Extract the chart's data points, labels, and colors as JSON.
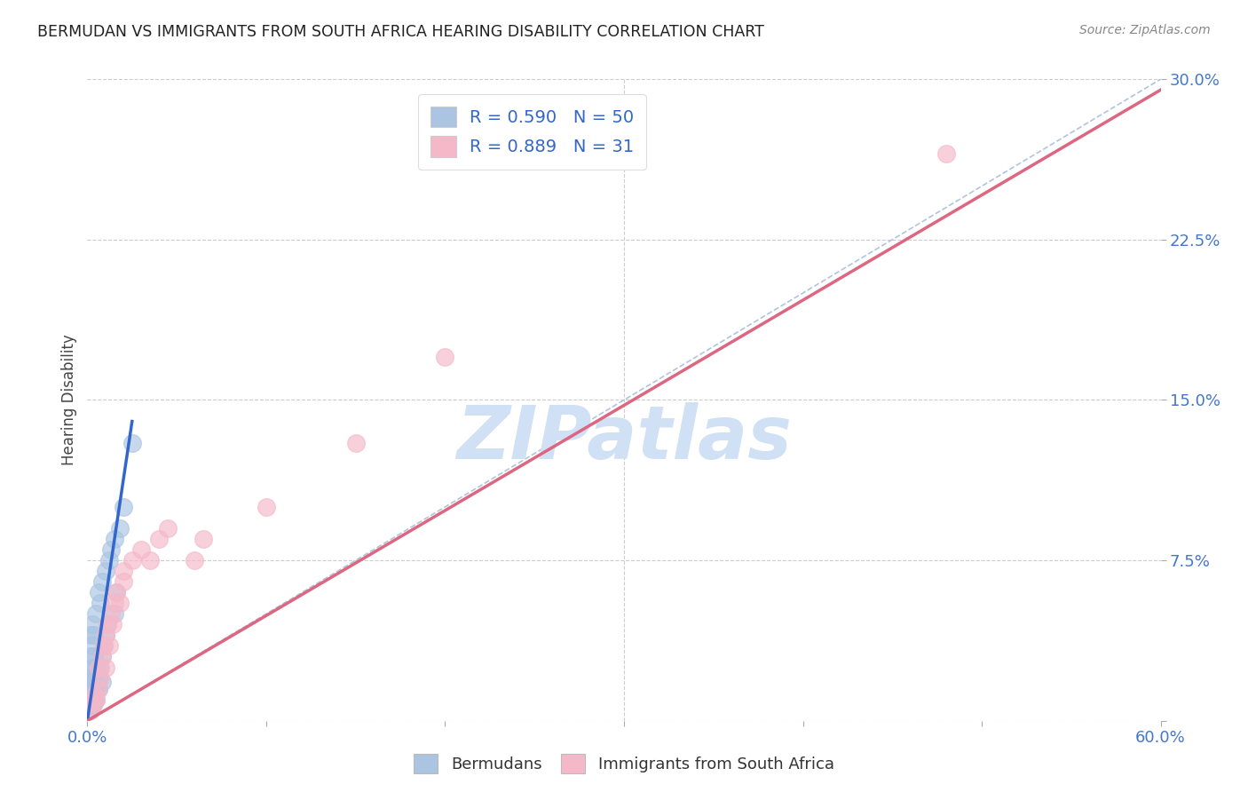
{
  "title": "BERMUDAN VS IMMIGRANTS FROM SOUTH AFRICA HEARING DISABILITY CORRELATION CHART",
  "source": "Source: ZipAtlas.com",
  "ylabel": "Hearing Disability",
  "xlim": [
    0.0,
    0.6
  ],
  "ylim": [
    0.0,
    0.3
  ],
  "xticks": [
    0.0,
    0.1,
    0.2,
    0.3,
    0.4,
    0.5,
    0.6
  ],
  "yticks": [
    0.0,
    0.075,
    0.15,
    0.225,
    0.3
  ],
  "ytick_labels": [
    "",
    "7.5%",
    "15.0%",
    "22.5%",
    "30.0%"
  ],
  "xtick_labels": [
    "0.0%",
    "",
    "",
    "",
    "",
    "",
    "60.0%"
  ],
  "blue_R": 0.59,
  "blue_N": 50,
  "pink_R": 0.889,
  "pink_N": 31,
  "blue_color": "#aac4e2",
  "pink_color": "#f5b8c8",
  "blue_line_color": "#3366cc",
  "pink_line_color": "#dd6680",
  "ref_line_color": "#b0c4de",
  "watermark_color": "#d0e0f5",
  "grid_color": "#cccccc",
  "title_color": "#222222",
  "axis_tick_color": "#4477cc",
  "blue_scatter_x": [
    0.001,
    0.001,
    0.001,
    0.001,
    0.002,
    0.002,
    0.002,
    0.002,
    0.002,
    0.002,
    0.003,
    0.003,
    0.003,
    0.003,
    0.003,
    0.003,
    0.004,
    0.004,
    0.004,
    0.004,
    0.005,
    0.005,
    0.005,
    0.006,
    0.006,
    0.007,
    0.007,
    0.008,
    0.008,
    0.009,
    0.01,
    0.01,
    0.011,
    0.012,
    0.013,
    0.015,
    0.015,
    0.016,
    0.018,
    0.02,
    0.001,
    0.001,
    0.002,
    0.002,
    0.003,
    0.004,
    0.005,
    0.006,
    0.008,
    0.025
  ],
  "blue_scatter_y": [
    0.01,
    0.012,
    0.015,
    0.02,
    0.008,
    0.01,
    0.012,
    0.02,
    0.03,
    0.04,
    0.008,
    0.01,
    0.015,
    0.025,
    0.035,
    0.045,
    0.01,
    0.02,
    0.03,
    0.04,
    0.015,
    0.025,
    0.05,
    0.02,
    0.06,
    0.025,
    0.055,
    0.03,
    0.065,
    0.035,
    0.04,
    0.07,
    0.045,
    0.075,
    0.08,
    0.05,
    0.085,
    0.06,
    0.09,
    0.1,
    0.005,
    0.008,
    0.005,
    0.018,
    0.007,
    0.012,
    0.01,
    0.015,
    0.018,
    0.13
  ],
  "pink_scatter_x": [
    0.002,
    0.004,
    0.004,
    0.005,
    0.006,
    0.006,
    0.007,
    0.008,
    0.009,
    0.01,
    0.01,
    0.011,
    0.012,
    0.013,
    0.014,
    0.015,
    0.016,
    0.018,
    0.02,
    0.02,
    0.025,
    0.03,
    0.035,
    0.04,
    0.045,
    0.06,
    0.065,
    0.1,
    0.15,
    0.2,
    0.48
  ],
  "pink_scatter_y": [
    0.005,
    0.008,
    0.012,
    0.01,
    0.015,
    0.025,
    0.02,
    0.03,
    0.035,
    0.025,
    0.04,
    0.045,
    0.035,
    0.05,
    0.045,
    0.055,
    0.06,
    0.055,
    0.065,
    0.07,
    0.075,
    0.08,
    0.075,
    0.085,
    0.09,
    0.075,
    0.085,
    0.1,
    0.13,
    0.17,
    0.265
  ],
  "blue_line_x": [
    0.0,
    0.025
  ],
  "blue_line_y": [
    0.0,
    0.14
  ],
  "pink_line_x": [
    0.0,
    0.6
  ],
  "pink_line_y": [
    0.0,
    0.295
  ],
  "ref_line_x": [
    0.0,
    0.6
  ],
  "ref_line_y": [
    0.0,
    0.3
  ]
}
